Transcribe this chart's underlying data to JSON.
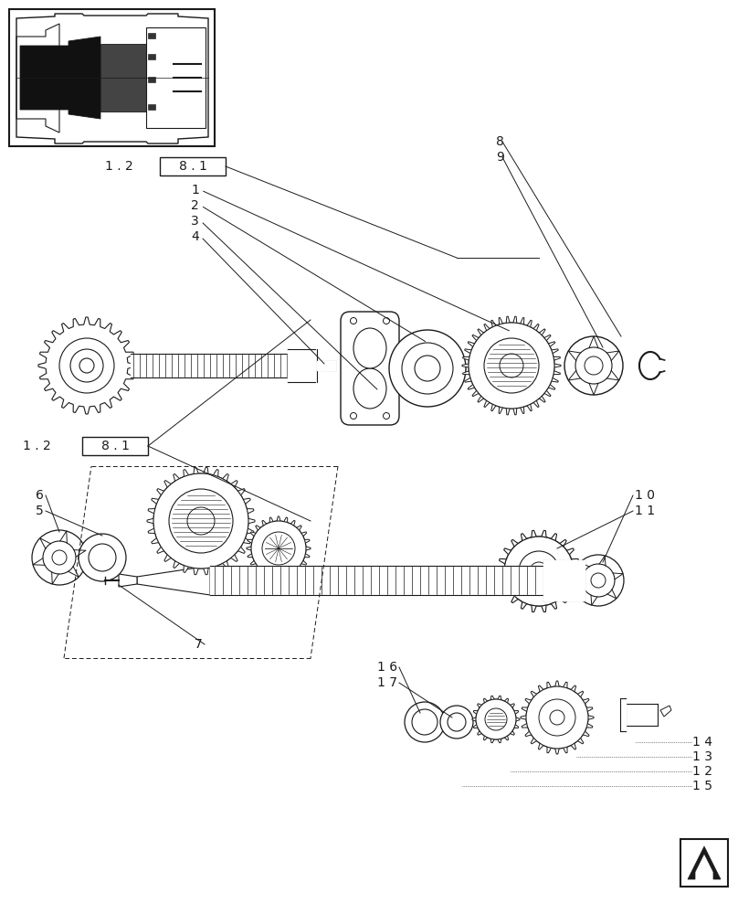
{
  "bg_color": "#ffffff",
  "line_color": "#1a1a1a",
  "fig_width": 8.08,
  "fig_height": 10.0,
  "dpi": 100
}
